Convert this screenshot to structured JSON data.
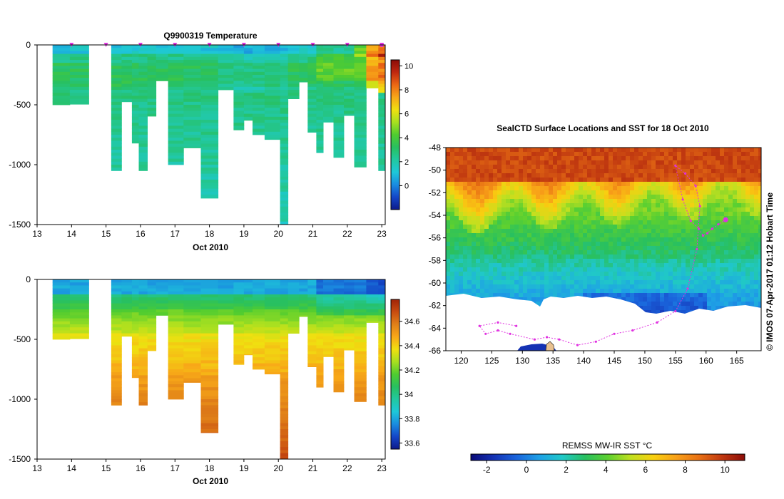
{
  "colors": {
    "temp_ramp": [
      "#0d1a8a",
      "#1446c8",
      "#1a8ce0",
      "#1ec8d8",
      "#22c8a0",
      "#28c060",
      "#50cc30",
      "#a8e020",
      "#f0e010",
      "#f8a818",
      "#ec6814",
      "#c02810",
      "#8c0c08"
    ],
    "sal_ramp": [
      "#0d1a8a",
      "#1446c8",
      "#1a8ce0",
      "#1ec8d8",
      "#22c8a0",
      "#28c060",
      "#50cc30",
      "#a8e020",
      "#f0e010",
      "#f8a818",
      "#e08018",
      "#c84c10",
      "#a02408"
    ],
    "map_ramp": [
      "#0a0a78",
      "#1432b4",
      "#1a64dc",
      "#1ea0e6",
      "#20c8c8",
      "#28c060",
      "#5cd030",
      "#c0e020",
      "#f8d010",
      "#f8a018",
      "#e87014",
      "#c03810",
      "#8c0c08"
    ],
    "marker": "#e030e0",
    "land": "#e8c090"
  },
  "chart_data": [
    {
      "type": "heatmap",
      "title": "Q9900319  Temperature",
      "xlabel": "Oct 2010",
      "ylabel": "",
      "x_ticks": [
        "13",
        "14",
        "15",
        "16",
        "17",
        "18",
        "19",
        "20",
        "21",
        "22",
        "23"
      ],
      "y_ticks": [
        "0",
        "-500",
        "-1000",
        "-1500"
      ],
      "xlim": [
        13,
        23.1
      ],
      "ylim": [
        -1500,
        0
      ],
      "colorbar_ticks": [
        "0",
        "2",
        "4",
        "6",
        "8",
        "10"
      ],
      "colorbar_range": [
        -2,
        10.5
      ],
      "profile_markers_day": [
        14,
        15,
        16,
        17,
        18,
        19,
        20,
        21,
        22,
        23
      ],
      "profiles": [
        {
          "start": 13.45,
          "end": 13.95,
          "depth": 500
        },
        {
          "start": 13.95,
          "end": 14.5,
          "depth": 495
        },
        {
          "start": 15.15,
          "end": 15.45,
          "depth": 1050
        },
        {
          "start": 15.45,
          "end": 15.75,
          "depth": 475
        },
        {
          "start": 15.75,
          "end": 15.95,
          "depth": 820
        },
        {
          "start": 15.95,
          "end": 16.2,
          "depth": 1050
        },
        {
          "start": 16.2,
          "end": 16.45,
          "depth": 595
        },
        {
          "start": 16.45,
          "end": 16.8,
          "depth": 300
        },
        {
          "start": 16.8,
          "end": 17.25,
          "depth": 1000
        },
        {
          "start": 17.25,
          "end": 17.75,
          "depth": 860
        },
        {
          "start": 17.75,
          "end": 18.25,
          "depth": 1280
        },
        {
          "start": 18.25,
          "end": 18.7,
          "depth": 375
        },
        {
          "start": 18.7,
          "end": 19.0,
          "depth": 710
        },
        {
          "start": 19.0,
          "end": 19.25,
          "depth": 630
        },
        {
          "start": 19.25,
          "end": 19.6,
          "depth": 750
        },
        {
          "start": 19.6,
          "end": 20.05,
          "depth": 790
        },
        {
          "start": 20.05,
          "end": 20.28,
          "depth": 1500
        },
        {
          "start": 20.28,
          "end": 20.6,
          "depth": 450
        },
        {
          "start": 20.6,
          "end": 20.85,
          "depth": 310
        },
        {
          "start": 20.85,
          "end": 21.1,
          "depth": 730
        },
        {
          "start": 21.1,
          "end": 21.3,
          "depth": 900
        },
        {
          "start": 21.3,
          "end": 21.6,
          "depth": 645
        },
        {
          "start": 21.6,
          "end": 21.9,
          "depth": 940
        },
        {
          "start": 21.9,
          "end": 22.2,
          "depth": 590
        },
        {
          "start": 22.2,
          "end": 22.55,
          "depth": 1020
        },
        {
          "start": 22.55,
          "end": 22.9,
          "depth": 360
        },
        {
          "start": 22.9,
          "end": 23.1,
          "depth": 1050
        }
      ]
    },
    {
      "type": "heatmap",
      "title": "",
      "xlabel": "Oct 2010",
      "ylabel": "",
      "x_ticks": [
        "13",
        "14",
        "15",
        "16",
        "17",
        "18",
        "19",
        "20",
        "21",
        "22",
        "23"
      ],
      "y_ticks": [
        "0",
        "-500",
        "-1000",
        "-1500"
      ],
      "xlim": [
        13,
        23.1
      ],
      "ylim": [
        -1500,
        0
      ],
      "colorbar_ticks": [
        "33.6",
        "33.8",
        "34",
        "34.2",
        "34.4",
        "34.6"
      ],
      "colorbar_range": [
        33.55,
        34.78
      ]
    },
    {
      "type": "heatmap",
      "title": "SealCTD Surface Locations and SST for 18 Oct 2010",
      "xlabel": "",
      "ylabel": "",
      "x_ticks": [
        "120",
        "125",
        "130",
        "135",
        "140",
        "145",
        "150",
        "155",
        "160",
        "165"
      ],
      "y_ticks": [
        "-48",
        "-50",
        "-52",
        "-54",
        "-56",
        "-58",
        "-60",
        "-62",
        "-64",
        "-66"
      ],
      "xlim": [
        117.5,
        169
      ],
      "ylim": [
        -66,
        -48
      ],
      "side_label": "© IMOS 07-Apr-2017 01:12 Hobart Time",
      "colorbar_title": "REMSS MW-IR SST °C",
      "colorbar_ticks": [
        "-2",
        "0",
        "2",
        "4",
        "6",
        "8",
        "10"
      ],
      "colorbar_range": [
        -2.8,
        11
      ],
      "track_points": [
        [
          163.2,
          -54.4
        ],
        [
          162,
          -54.8
        ],
        [
          161,
          -55.2
        ],
        [
          160.2,
          -55.6
        ],
        [
          159.5,
          -55.8
        ],
        [
          158.8,
          -55.2
        ],
        [
          157.5,
          -54.5
        ],
        [
          156.2,
          -52.6
        ],
        [
          155,
          -49.6
        ],
        [
          156.6,
          -50.3
        ],
        [
          158.3,
          -51.4
        ],
        [
          159,
          -53.2
        ],
        [
          158.5,
          -57
        ],
        [
          157,
          -60.5
        ],
        [
          155,
          -62.5
        ],
        [
          152,
          -63.5
        ],
        [
          148,
          -64.2
        ],
        [
          145,
          -64.5
        ],
        [
          142,
          -65.2
        ],
        [
          139,
          -65.5
        ],
        [
          136,
          -65
        ],
        [
          134,
          -64.8
        ],
        [
          132,
          -65
        ],
        [
          128,
          -64.5
        ],
        [
          126,
          -64.2
        ],
        [
          124,
          -64.5
        ],
        [
          123,
          -63.8
        ],
        [
          126,
          -63.5
        ],
        [
          129,
          -63.8
        ]
      ]
    }
  ]
}
